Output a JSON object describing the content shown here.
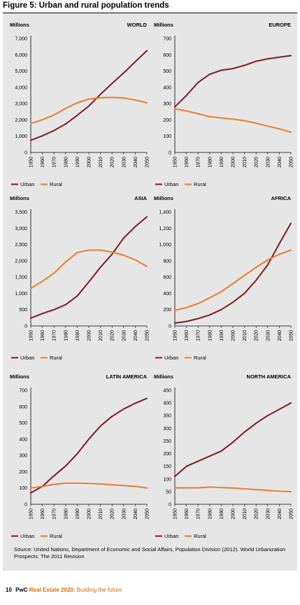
{
  "figure_title": "Figure 5: Urban and rural population trends",
  "colors": {
    "urban": "#7d1a24",
    "rural": "#ef7a2b",
    "panel": "#e6e6e6"
  },
  "legend": {
    "urban": "Urban",
    "rural": "Rural"
  },
  "source": "Source: United Nations, Department of Economic and Social Affairs, Population Division (2012). World Urbanization Prospects: The 2011 Revision",
  "footer": {
    "page": "10",
    "brand": "PwC",
    "report": "Real Estate 2020:",
    "subtitle": "Building the future"
  },
  "chart_data": [
    {
      "type": "line",
      "title": "WORLD",
      "ylabel": "Millions",
      "x": [
        1950,
        1960,
        1970,
        1980,
        1990,
        2000,
        2010,
        2020,
        2030,
        2040,
        2050
      ],
      "ylim": [
        0,
        7000
      ],
      "yticks": [
        "0",
        "1,000",
        "2,000",
        "3,000",
        "4,000",
        "5,000",
        "6,000",
        "7,000"
      ],
      "series": [
        {
          "name": "Urban",
          "values": [
            750,
            1020,
            1350,
            1750,
            2280,
            2850,
            3570,
            4240,
            4880,
            5570,
            6250
          ]
        },
        {
          "name": "Rural",
          "values": [
            1780,
            2010,
            2300,
            2700,
            3050,
            3280,
            3360,
            3380,
            3350,
            3220,
            3050
          ]
        }
      ]
    },
    {
      "type": "line",
      "title": "EUROPE",
      "ylabel": "Millions",
      "x": [
        1950,
        1960,
        1970,
        1980,
        1990,
        2000,
        2010,
        2020,
        2030,
        2040,
        2050
      ],
      "ylim": [
        0,
        700
      ],
      "yticks": [
        "0",
        "100",
        "200",
        "300",
        "400",
        "500",
        "600",
        "700"
      ],
      "series": [
        {
          "name": "Urban",
          "values": [
            280,
            350,
            430,
            480,
            505,
            515,
            535,
            560,
            575,
            585,
            595
          ]
        },
        {
          "name": "Rural",
          "values": [
            268,
            255,
            238,
            220,
            212,
            205,
            195,
            180,
            162,
            145,
            125
          ]
        }
      ]
    },
    {
      "type": "line",
      "title": "ASIA",
      "ylabel": "Millions",
      "x": [
        1950,
        1960,
        1970,
        1980,
        1990,
        2000,
        2010,
        2020,
        2030,
        2040,
        2050
      ],
      "ylim": [
        0,
        3500
      ],
      "yticks": [
        "0",
        "500",
        "1,000",
        "1,500",
        "2,000",
        "2,500",
        "3,000",
        "3,500"
      ],
      "series": [
        {
          "name": "Urban",
          "values": [
            240,
            380,
            500,
            650,
            920,
            1350,
            1800,
            2200,
            2700,
            3050,
            3350
          ]
        },
        {
          "name": "Rural",
          "values": [
            1150,
            1370,
            1620,
            1960,
            2250,
            2330,
            2330,
            2270,
            2170,
            2030,
            1830
          ]
        }
      ]
    },
    {
      "type": "line",
      "title": "AFRICA",
      "ylabel": "Millions",
      "x": [
        1950,
        1960,
        1970,
        1980,
        1990,
        2000,
        2010,
        2020,
        2030,
        2040,
        2050
      ],
      "ylim": [
        0,
        1400
      ],
      "yticks": [
        "0",
        "200",
        "400",
        "600",
        "800",
        "1,000",
        "1,200",
        "1,400"
      ],
      "series": [
        {
          "name": "Urban",
          "values": [
            35,
            55,
            90,
            135,
            200,
            290,
            400,
            560,
            750,
            1010,
            1260
          ]
        },
        {
          "name": "Rural",
          "values": [
            190,
            225,
            275,
            345,
            420,
            520,
            620,
            720,
            810,
            880,
            930
          ]
        }
      ]
    },
    {
      "type": "line",
      "title": "LATIN AMERICA",
      "ylabel": "Millions",
      "x": [
        1950,
        1960,
        1970,
        1980,
        1990,
        2000,
        2010,
        2020,
        2030,
        2040,
        2050
      ],
      "ylim": [
        0,
        700
      ],
      "yticks": [
        "0",
        "100",
        "200",
        "300",
        "400",
        "500",
        "600",
        "700"
      ],
      "series": [
        {
          "name": "Urban",
          "values": [
            70,
            110,
            175,
            235,
            310,
            400,
            480,
            540,
            585,
            620,
            650
          ]
        },
        {
          "name": "Rural",
          "values": [
            100,
            110,
            122,
            130,
            130,
            128,
            125,
            120,
            115,
            110,
            100
          ]
        }
      ]
    },
    {
      "type": "line",
      "title": "NORTH AMERICA",
      "ylabel": "Millions",
      "x": [
        1950,
        1960,
        1970,
        1980,
        1990,
        2000,
        2010,
        2020,
        2030,
        2040,
        2050
      ],
      "ylim": [
        0,
        450
      ],
      "yticks": [
        "0",
        "50",
        "100",
        "150",
        "200",
        "250",
        "300",
        "350",
        "400",
        "450"
      ],
      "series": [
        {
          "name": "Urban",
          "values": [
            110,
            150,
            170,
            190,
            210,
            245,
            285,
            320,
            350,
            375,
            400
          ]
        },
        {
          "name": "Rural",
          "values": [
            65,
            65,
            65,
            68,
            66,
            64,
            61,
            58,
            55,
            52,
            50
          ]
        }
      ]
    }
  ]
}
